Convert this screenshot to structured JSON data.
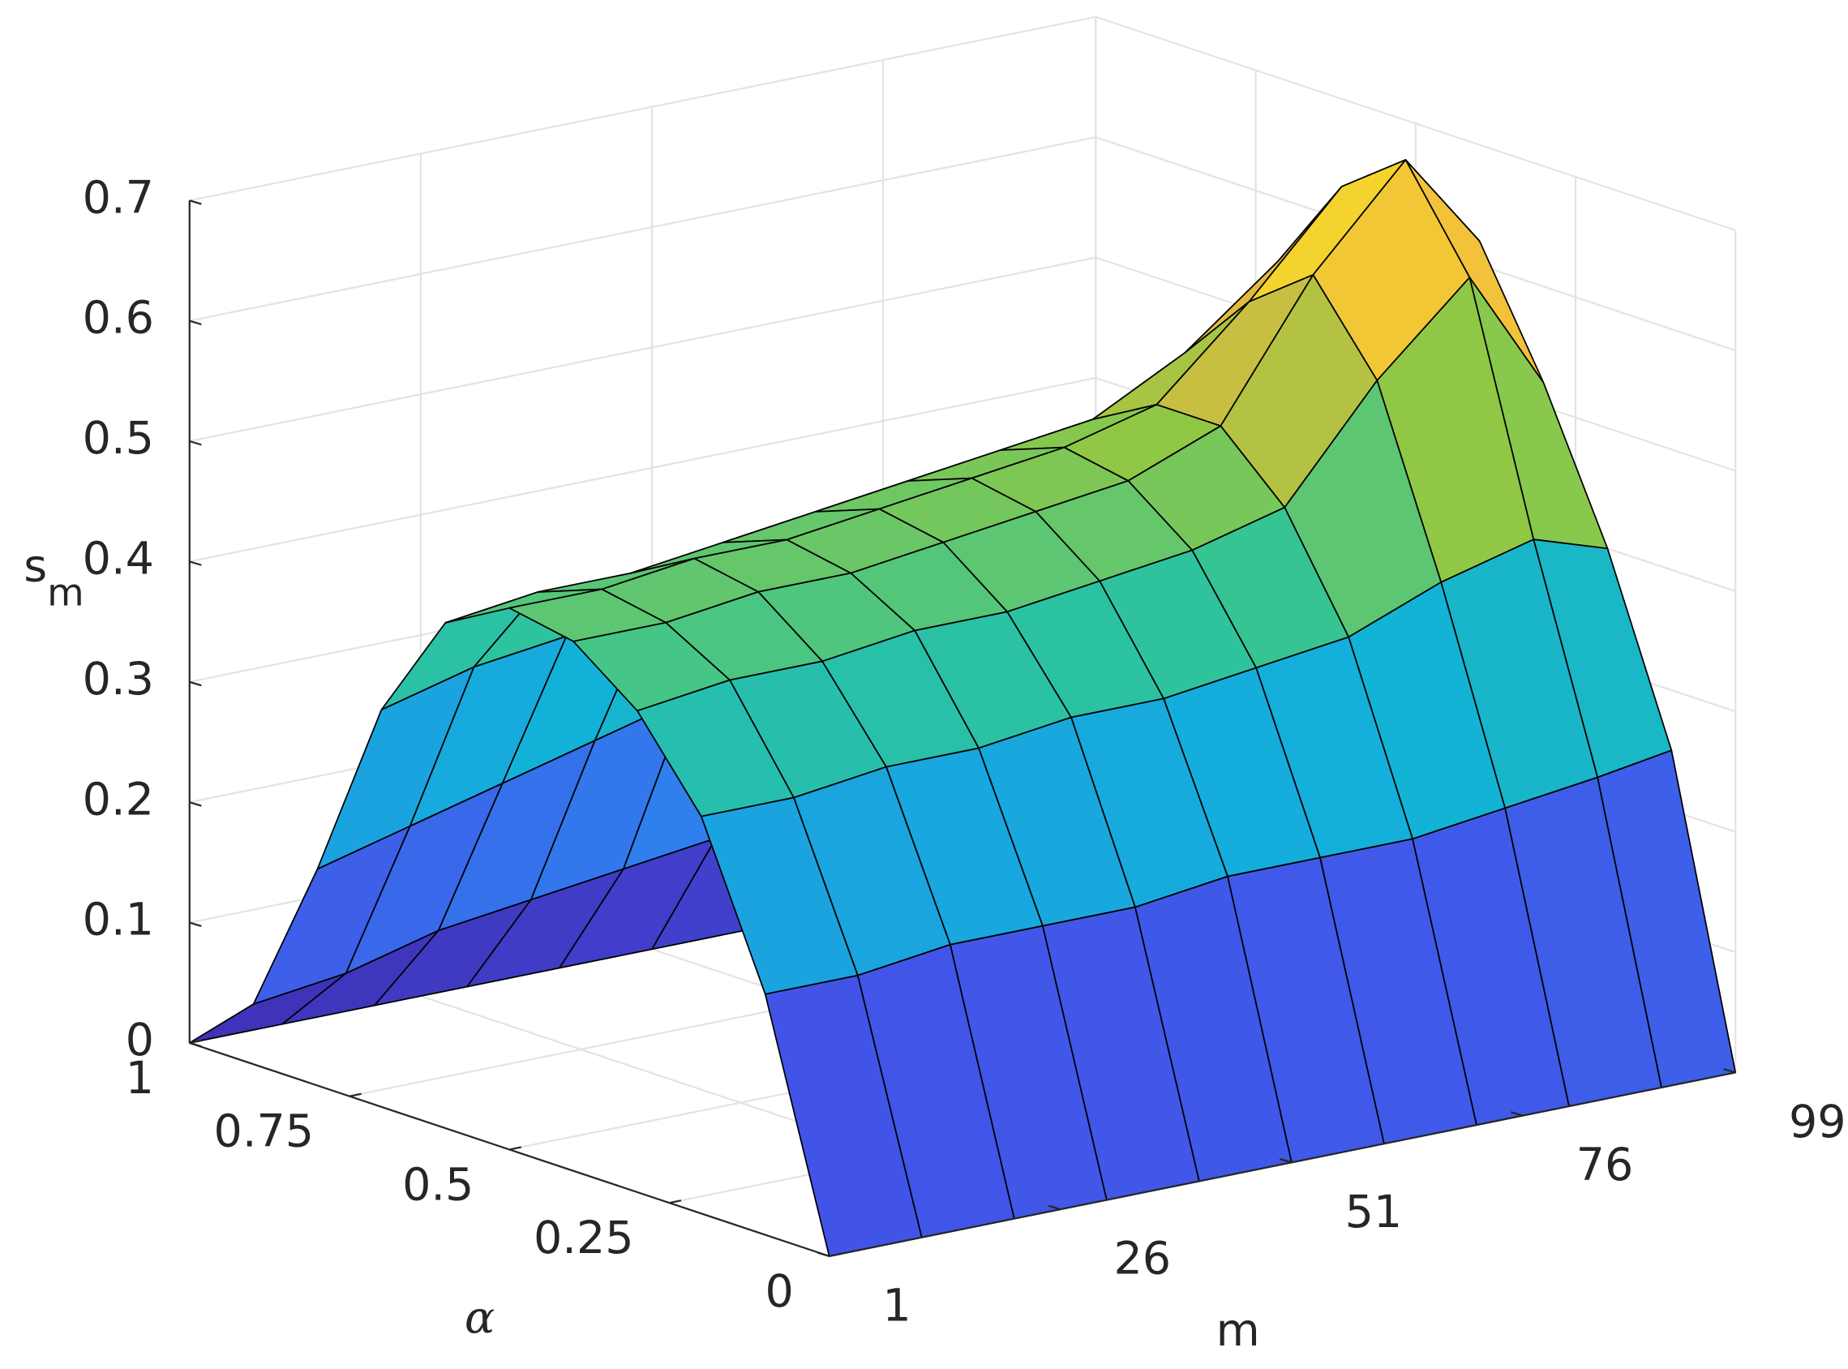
{
  "chart_data": {
    "type": "surface",
    "xlabel": "m",
    "ylabel": "α",
    "zlabel": {
      "base": "s",
      "subscript": "m"
    },
    "x": [
      1,
      11,
      21,
      31,
      41,
      51,
      61,
      71,
      81,
      91,
      99
    ],
    "y": [
      0,
      0.1,
      0.2,
      0.3,
      0.4,
      0.5,
      0.6,
      0.7,
      0.8,
      0.9,
      1
    ],
    "z": [
      [
        0,
        0,
        0,
        0,
        0,
        0,
        0,
        0,
        0,
        0,
        0
      ],
      [
        0.2,
        0.2,
        0.21,
        0.21,
        0.21,
        0.22,
        0.22,
        0.22,
        0.23,
        0.24,
        0.25
      ],
      [
        0.33,
        0.33,
        0.34,
        0.34,
        0.35,
        0.35,
        0.36,
        0.37,
        0.4,
        0.42,
        0.4
      ],
      [
        0.4,
        0.41,
        0.41,
        0.42,
        0.42,
        0.43,
        0.44,
        0.46,
        0.55,
        0.62,
        0.52
      ],
      [
        0.44,
        0.44,
        0.45,
        0.45,
        0.46,
        0.47,
        0.48,
        0.51,
        0.62,
        0.7,
        0.62
      ],
      [
        0.45,
        0.45,
        0.46,
        0.46,
        0.47,
        0.48,
        0.49,
        0.51,
        0.58,
        0.66,
        0.64
      ],
      [
        0.42,
        0.43,
        0.43,
        0.44,
        0.45,
        0.46,
        0.47,
        0.48,
        0.52,
        0.58,
        0.58
      ],
      [
        0.33,
        0.35,
        0.36,
        0.38,
        0.39,
        0.4,
        0.41,
        0.42,
        0.45,
        0.48,
        0.48
      ],
      [
        0.18,
        0.2,
        0.22,
        0.24,
        0.26,
        0.27,
        0.29,
        0.3,
        0.32,
        0.33,
        0.33
      ],
      [
        0.05,
        0.06,
        0.08,
        0.09,
        0.1,
        0.11,
        0.12,
        0.13,
        0.14,
        0.15,
        0.15
      ],
      [
        0,
        0,
        0,
        0,
        0,
        0,
        0,
        0,
        0,
        0,
        0
      ]
    ],
    "xlim": [
      1,
      99
    ],
    "xticks": [
      1,
      26,
      51,
      76,
      99
    ],
    "ylim": [
      0,
      1
    ],
    "yticks": [
      0,
      0.25,
      0.5,
      0.75,
      1
    ],
    "zlim": [
      0,
      0.7
    ],
    "zticks": [
      0,
      0.1,
      0.2,
      0.3,
      0.4,
      0.5,
      0.6,
      0.7
    ],
    "grid": true,
    "colormap": [
      "#3e26a8",
      "#4254e8",
      "#2c86ee",
      "#12b2d8",
      "#2fc49a",
      "#92c843",
      "#f0b840",
      "#f9fb15"
    ],
    "edgecolor": "#000000"
  }
}
